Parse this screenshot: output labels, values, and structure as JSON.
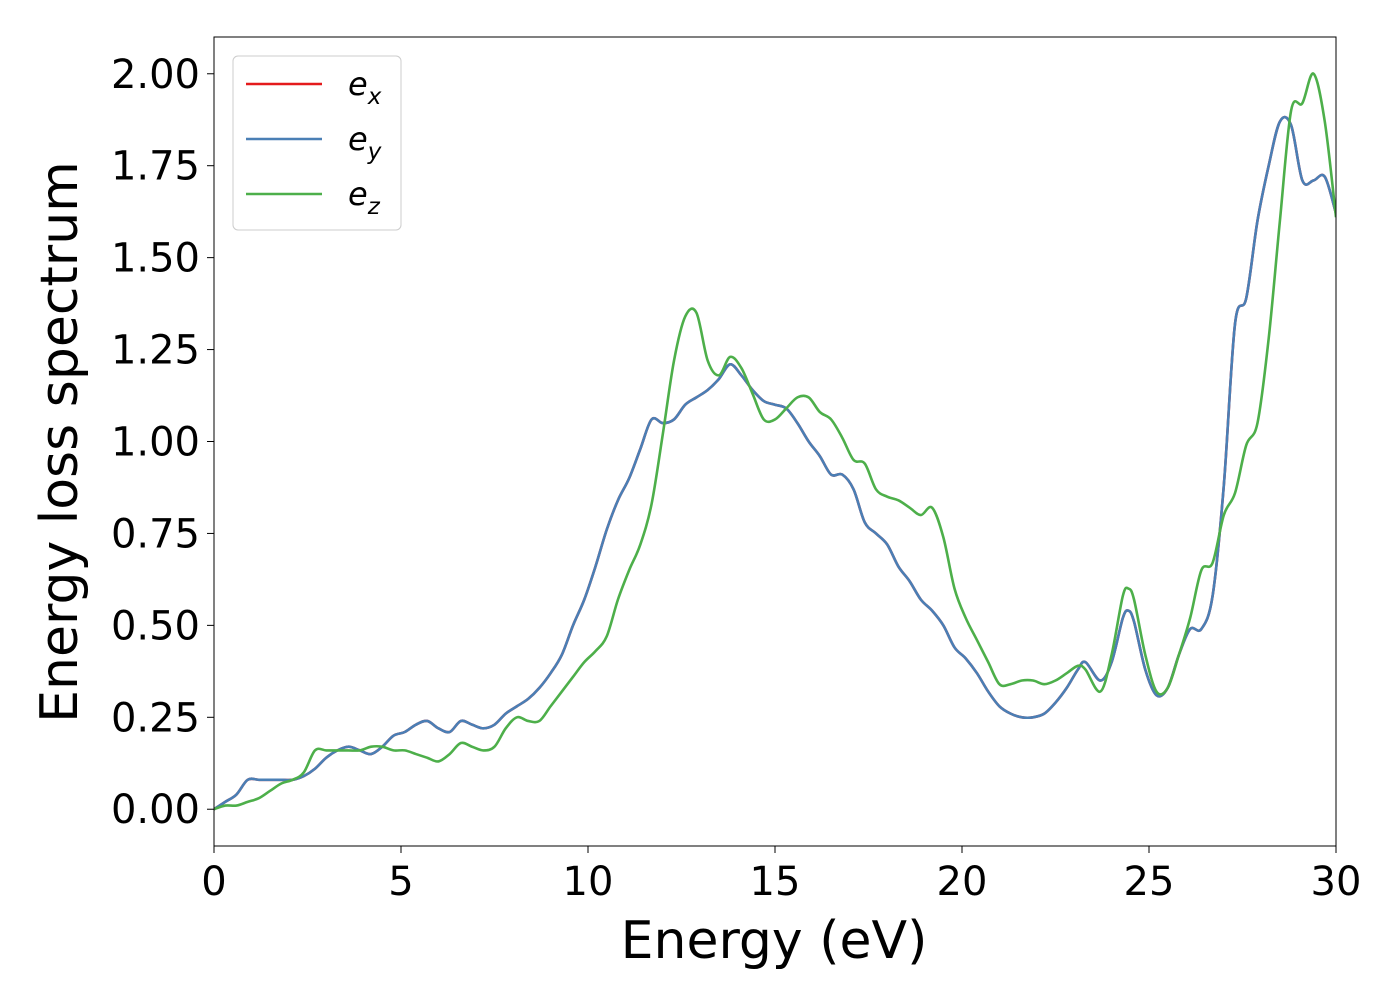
{
  "chart_data": {
    "type": "line",
    "xlabel": "Energy (eV)",
    "ylabel": "Energy loss spectrum",
    "xlim": [
      0,
      30
    ],
    "ylim": [
      -0.1,
      2.1
    ],
    "xticks": [
      0,
      5,
      10,
      15,
      20,
      25,
      30
    ],
    "yticks": [
      0.0,
      0.25,
      0.5,
      0.75,
      1.0,
      1.25,
      1.5,
      1.75,
      2.0
    ],
    "xtick_labels": [
      "0",
      "5",
      "10",
      "15",
      "20",
      "25",
      "30"
    ],
    "ytick_labels": [
      "0.00",
      "0.25",
      "0.50",
      "0.75",
      "1.00",
      "1.25",
      "1.50",
      "1.75",
      "2.00"
    ],
    "grid": false,
    "legend_position": "top-left",
    "series": [
      {
        "name": "e",
        "subscript": "x",
        "color": "#e41a1c",
        "x": [
          0,
          0.3,
          0.6,
          0.9,
          1.2,
          1.5,
          1.8,
          2.1,
          2.4,
          2.7,
          3.0,
          3.3,
          3.6,
          3.9,
          4.2,
          4.5,
          4.8,
          5.1,
          5.4,
          5.7,
          6.0,
          6.3,
          6.6,
          6.9,
          7.2,
          7.5,
          7.8,
          8.1,
          8.4,
          8.7,
          9.0,
          9.3,
          9.6,
          9.9,
          10.2,
          10.5,
          10.8,
          11.1,
          11.4,
          11.7,
          12.0,
          12.3,
          12.6,
          12.9,
          13.2,
          13.5,
          13.8,
          14.1,
          14.4,
          14.7,
          15.0,
          15.3,
          15.6,
          15.9,
          16.2,
          16.5,
          16.8,
          17.1,
          17.4,
          17.7,
          18.0,
          18.3,
          18.6,
          18.9,
          19.2,
          19.5,
          19.8,
          20.1,
          20.4,
          20.7,
          21.0,
          21.3,
          21.6,
          21.9,
          22.2,
          22.5,
          22.8,
          23.1,
          23.3,
          23.7,
          24.0,
          24.3,
          24.45,
          24.6,
          24.9,
          25.2,
          25.5,
          25.8,
          26.1,
          26.4,
          26.7,
          27.0,
          27.3,
          27.6,
          27.9,
          28.2,
          28.5,
          28.8,
          29.1,
          29.4,
          29.7,
          30.0
        ],
        "y": [
          0.0,
          0.02,
          0.04,
          0.08,
          0.08,
          0.08,
          0.08,
          0.08,
          0.09,
          0.11,
          0.14,
          0.16,
          0.17,
          0.16,
          0.15,
          0.17,
          0.2,
          0.21,
          0.23,
          0.24,
          0.22,
          0.21,
          0.24,
          0.23,
          0.22,
          0.23,
          0.26,
          0.28,
          0.3,
          0.33,
          0.37,
          0.42,
          0.5,
          0.57,
          0.66,
          0.76,
          0.84,
          0.9,
          0.98,
          1.06,
          1.05,
          1.06,
          1.1,
          1.12,
          1.14,
          1.17,
          1.21,
          1.18,
          1.14,
          1.11,
          1.1,
          1.09,
          1.05,
          1.0,
          0.96,
          0.91,
          0.91,
          0.87,
          0.78,
          0.75,
          0.72,
          0.66,
          0.62,
          0.57,
          0.54,
          0.5,
          0.44,
          0.41,
          0.37,
          0.32,
          0.28,
          0.26,
          0.25,
          0.25,
          0.26,
          0.29,
          0.33,
          0.38,
          0.4,
          0.35,
          0.4,
          0.52,
          0.54,
          0.51,
          0.38,
          0.31,
          0.33,
          0.42,
          0.49,
          0.49,
          0.58,
          0.88,
          1.32,
          1.39,
          1.6,
          1.75,
          1.87,
          1.86,
          1.71,
          1.71,
          1.72,
          1.62
        ]
      },
      {
        "name": "e",
        "subscript": "y",
        "color": "#4a7fb5",
        "x": [
          0,
          0.3,
          0.6,
          0.9,
          1.2,
          1.5,
          1.8,
          2.1,
          2.4,
          2.7,
          3.0,
          3.3,
          3.6,
          3.9,
          4.2,
          4.5,
          4.8,
          5.1,
          5.4,
          5.7,
          6.0,
          6.3,
          6.6,
          6.9,
          7.2,
          7.5,
          7.8,
          8.1,
          8.4,
          8.7,
          9.0,
          9.3,
          9.6,
          9.9,
          10.2,
          10.5,
          10.8,
          11.1,
          11.4,
          11.7,
          12.0,
          12.3,
          12.6,
          12.9,
          13.2,
          13.5,
          13.8,
          14.1,
          14.4,
          14.7,
          15.0,
          15.3,
          15.6,
          15.9,
          16.2,
          16.5,
          16.8,
          17.1,
          17.4,
          17.7,
          18.0,
          18.3,
          18.6,
          18.9,
          19.2,
          19.5,
          19.8,
          20.1,
          20.4,
          20.7,
          21.0,
          21.3,
          21.6,
          21.9,
          22.2,
          22.5,
          22.8,
          23.1,
          23.3,
          23.7,
          24.0,
          24.3,
          24.45,
          24.6,
          24.9,
          25.2,
          25.5,
          25.8,
          26.1,
          26.4,
          26.7,
          27.0,
          27.3,
          27.6,
          27.9,
          28.2,
          28.5,
          28.8,
          29.1,
          29.4,
          29.7,
          30.0
        ],
        "y": [
          0.0,
          0.02,
          0.04,
          0.08,
          0.08,
          0.08,
          0.08,
          0.08,
          0.09,
          0.11,
          0.14,
          0.16,
          0.17,
          0.16,
          0.15,
          0.17,
          0.2,
          0.21,
          0.23,
          0.24,
          0.22,
          0.21,
          0.24,
          0.23,
          0.22,
          0.23,
          0.26,
          0.28,
          0.3,
          0.33,
          0.37,
          0.42,
          0.5,
          0.57,
          0.66,
          0.76,
          0.84,
          0.9,
          0.98,
          1.06,
          1.05,
          1.06,
          1.1,
          1.12,
          1.14,
          1.17,
          1.21,
          1.18,
          1.14,
          1.11,
          1.1,
          1.09,
          1.05,
          1.0,
          0.96,
          0.91,
          0.91,
          0.87,
          0.78,
          0.75,
          0.72,
          0.66,
          0.62,
          0.57,
          0.54,
          0.5,
          0.44,
          0.41,
          0.37,
          0.32,
          0.28,
          0.26,
          0.25,
          0.25,
          0.26,
          0.29,
          0.33,
          0.38,
          0.4,
          0.35,
          0.4,
          0.52,
          0.54,
          0.51,
          0.38,
          0.31,
          0.33,
          0.42,
          0.49,
          0.49,
          0.58,
          0.88,
          1.32,
          1.39,
          1.6,
          1.75,
          1.87,
          1.86,
          1.71,
          1.71,
          1.72,
          1.62
        ]
      },
      {
        "name": "e",
        "subscript": "z",
        "color": "#4daf4a",
        "x": [
          0,
          0.3,
          0.6,
          0.9,
          1.2,
          1.5,
          1.8,
          2.1,
          2.4,
          2.7,
          3.0,
          3.3,
          3.6,
          3.9,
          4.2,
          4.5,
          4.8,
          5.1,
          5.4,
          5.7,
          6.0,
          6.3,
          6.6,
          6.9,
          7.2,
          7.5,
          7.8,
          8.1,
          8.4,
          8.7,
          9.0,
          9.3,
          9.6,
          9.9,
          10.2,
          10.5,
          10.8,
          11.1,
          11.4,
          11.7,
          12.0,
          12.3,
          12.6,
          12.9,
          13.2,
          13.5,
          13.8,
          14.1,
          14.4,
          14.7,
          15.0,
          15.3,
          15.6,
          15.9,
          16.2,
          16.5,
          16.8,
          17.1,
          17.4,
          17.7,
          18.0,
          18.3,
          18.6,
          18.9,
          19.2,
          19.5,
          19.8,
          20.1,
          20.4,
          20.7,
          21.0,
          21.3,
          21.6,
          21.9,
          22.2,
          22.5,
          22.8,
          23.1,
          23.3,
          23.7,
          24.0,
          24.3,
          24.45,
          24.6,
          24.9,
          25.2,
          25.5,
          25.8,
          26.1,
          26.4,
          26.7,
          27.0,
          27.3,
          27.6,
          27.9,
          28.2,
          28.5,
          28.8,
          29.1,
          29.4,
          29.7,
          30.0
        ],
        "y": [
          0.0,
          0.01,
          0.01,
          0.02,
          0.03,
          0.05,
          0.07,
          0.08,
          0.1,
          0.16,
          0.16,
          0.16,
          0.16,
          0.16,
          0.17,
          0.17,
          0.16,
          0.16,
          0.15,
          0.14,
          0.13,
          0.15,
          0.18,
          0.17,
          0.16,
          0.17,
          0.22,
          0.25,
          0.24,
          0.24,
          0.28,
          0.32,
          0.36,
          0.4,
          0.43,
          0.47,
          0.57,
          0.65,
          0.72,
          0.83,
          1.02,
          1.22,
          1.34,
          1.35,
          1.22,
          1.18,
          1.23,
          1.2,
          1.13,
          1.06,
          1.06,
          1.09,
          1.12,
          1.12,
          1.08,
          1.06,
          1.01,
          0.95,
          0.94,
          0.87,
          0.85,
          0.84,
          0.82,
          0.8,
          0.82,
          0.74,
          0.6,
          0.52,
          0.46,
          0.4,
          0.34,
          0.34,
          0.35,
          0.35,
          0.34,
          0.35,
          0.37,
          0.39,
          0.38,
          0.32,
          0.42,
          0.58,
          0.6,
          0.57,
          0.42,
          0.32,
          0.33,
          0.42,
          0.52,
          0.65,
          0.67,
          0.8,
          0.86,
          0.99,
          1.05,
          1.28,
          1.6,
          1.9,
          1.92,
          2.0,
          1.87,
          1.61
        ]
      }
    ]
  }
}
